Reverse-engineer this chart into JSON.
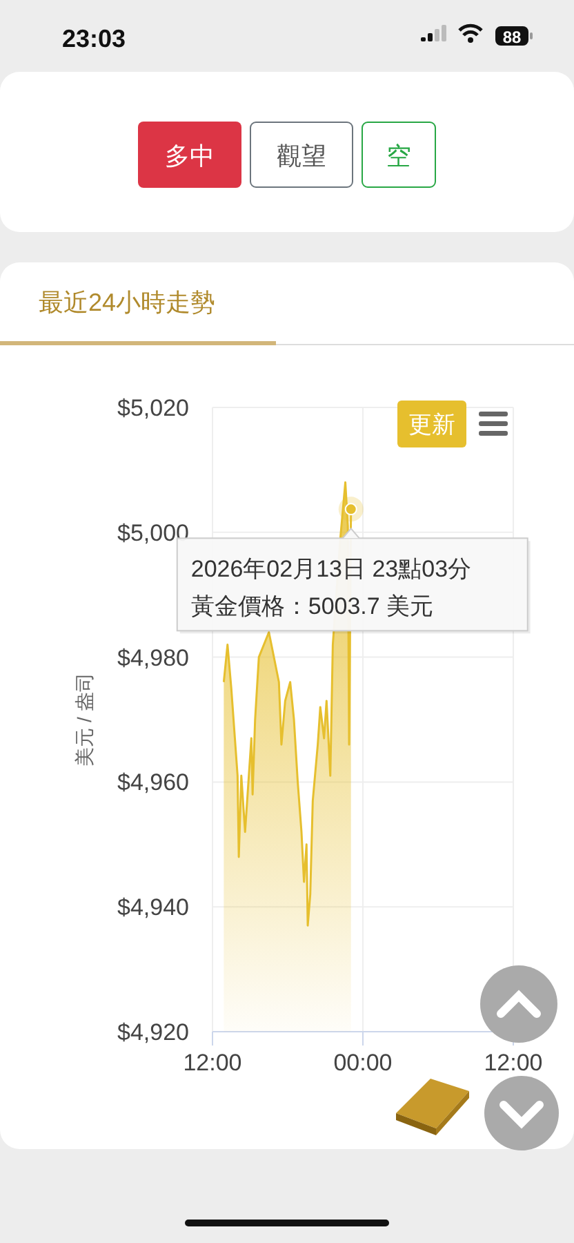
{
  "chart_data": [
    {
      "type": "other",
      "annotations": [
        "23:03",
        "88",
        "多中",
        "觀望",
        "空"
      ]
    },
    {
      "type": "area",
      "title": "最近24小時走勢",
      "ylabel": "美元 / 盎司",
      "x": [
        "2026-02-13T12:54",
        "2026-02-13T13:12",
        "2026-02-13T13:30",
        "2026-02-13T14:00",
        "2026-02-13T14:06",
        "2026-02-13T14:18",
        "2026-02-13T14:36",
        "2026-02-13T15:06",
        "2026-02-13T15:12",
        "2026-02-13T15:24",
        "2026-02-13T15:42",
        "2026-02-13T16:30",
        "2026-02-13T16:48",
        "2026-02-13T17:18",
        "2026-02-13T17:30",
        "2026-02-13T17:48",
        "2026-02-13T18:12",
        "2026-02-13T18:30",
        "2026-02-13T18:48",
        "2026-02-13T19:06",
        "2026-02-13T19:18",
        "2026-02-13T19:30",
        "2026-02-13T19:36",
        "2026-02-13T19:48",
        "2026-02-13T20:00",
        "2026-02-13T20:24",
        "2026-02-13T20:36",
        "2026-02-13T20:54",
        "2026-02-13T21:06",
        "2026-02-13T21:24",
        "2026-02-13T21:36",
        "2026-02-13T22:12",
        "2026-02-13T22:36",
        "2026-02-13T22:48",
        "2026-02-13T22:54",
        "2026-02-13T23:03"
      ],
      "series": [
        {
          "color": "#e6bf2e",
          "values": [
            4976,
            4982,
            4975,
            4961,
            4948,
            4961,
            4952,
            4967,
            4958,
            4970,
            4980,
            4984,
            4981,
            4976,
            4966,
            4973,
            4976,
            4970,
            4960,
            4952,
            4944,
            4950,
            4937,
            4942,
            4957,
            4966,
            4972,
            4967,
            4973,
            4961,
            4982,
            4999,
            5008,
            5001,
            4966,
            5003.7
          ]
        }
      ],
      "xlim": [
        "2026-02-13T12:00",
        "2026-02-14T12:00"
      ],
      "xticks": [
        {
          "value": "2026-02-13T12:00",
          "label": "12:00"
        },
        {
          "value": "2026-02-14T00:00",
          "label": "00:00"
        },
        {
          "value": "2026-02-14T12:00",
          "label": "12:00"
        }
      ],
      "ylim": [
        4920,
        5020
      ],
      "yticks": [
        {
          "value": 4920,
          "label": "$4,920"
        },
        {
          "value": 4940,
          "label": "$4,940"
        },
        {
          "value": 4960,
          "label": "$4,960"
        },
        {
          "value": 4980,
          "label": "$4,980"
        },
        {
          "value": 5000,
          "label": "$5,000"
        },
        {
          "value": 5020,
          "label": "$5,020"
        }
      ],
      "grid": true,
      "annotations": [
        "更新",
        {
          "text": "2026年02月13日 23點03分",
          "x": "2026-02-13T23:03",
          "y": 5003.7
        },
        "黃金價格：5003.7 美元"
      ]
    }
  ]
}
